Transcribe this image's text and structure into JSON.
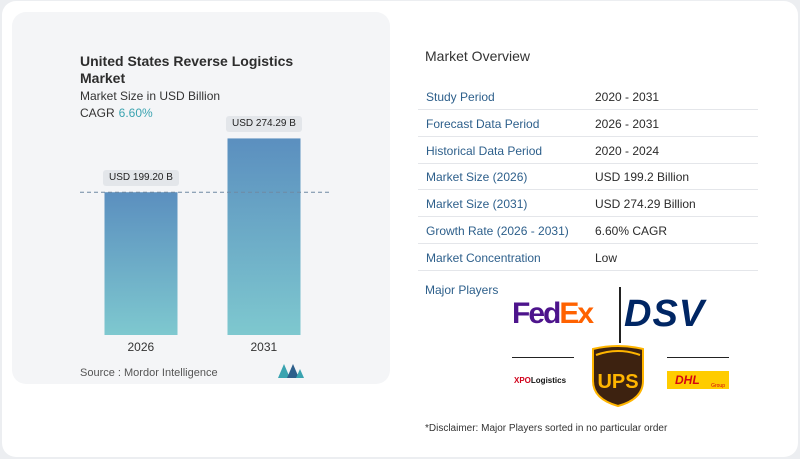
{
  "chart_data": {
    "type": "bar",
    "title": "United States Reverse Logistics Market",
    "subtitle": "Market Size in USD Billion",
    "cagr_label": "CAGR",
    "cagr_value": "6.60%",
    "categories": [
      "2026",
      "2031"
    ],
    "values": [
      199.2,
      274.29
    ],
    "data_labels": [
      "USD 199.20 B",
      "USD 274.29 B"
    ],
    "ylim": [
      0,
      300
    ],
    "reference_line": 199.2,
    "bar_gradient": [
      "#5b8fbf",
      "#7ec8cf"
    ],
    "source": "Source :  Mordor Intelligence"
  },
  "overview": {
    "title": "Market Overview",
    "rows": [
      {
        "label": "Study Period",
        "value": "2020 - 2031"
      },
      {
        "label": "Forecast Data Period",
        "value": "2026 - 2031"
      },
      {
        "label": "Historical Data Period",
        "value": "2020 - 2024"
      },
      {
        "label": "Market Size (2026)",
        "value": "USD 199.2 Billion"
      },
      {
        "label": "Market Size (2031)",
        "value": "USD 274.29 Billion"
      },
      {
        "label": "Growth Rate (2026 - 2031)",
        "value": "6.60% CAGR"
      },
      {
        "label": "Market Concentration",
        "value": "Low"
      }
    ],
    "players_title": "Major Players",
    "players": {
      "fedex_fed": "Fed",
      "fedex_ex": "Ex",
      "dsv": "DSV",
      "xpo_x": "XPO",
      "xpo_rest": "Logistics",
      "ups": "UPS",
      "dhl": "DHL",
      "dhl_sub": "Group"
    },
    "disclaimer": "*Disclaimer: Major Players sorted in no particular order"
  },
  "colors": {
    "label_blue": "#2d5f8b",
    "accent_teal": "#3aa3b0"
  }
}
